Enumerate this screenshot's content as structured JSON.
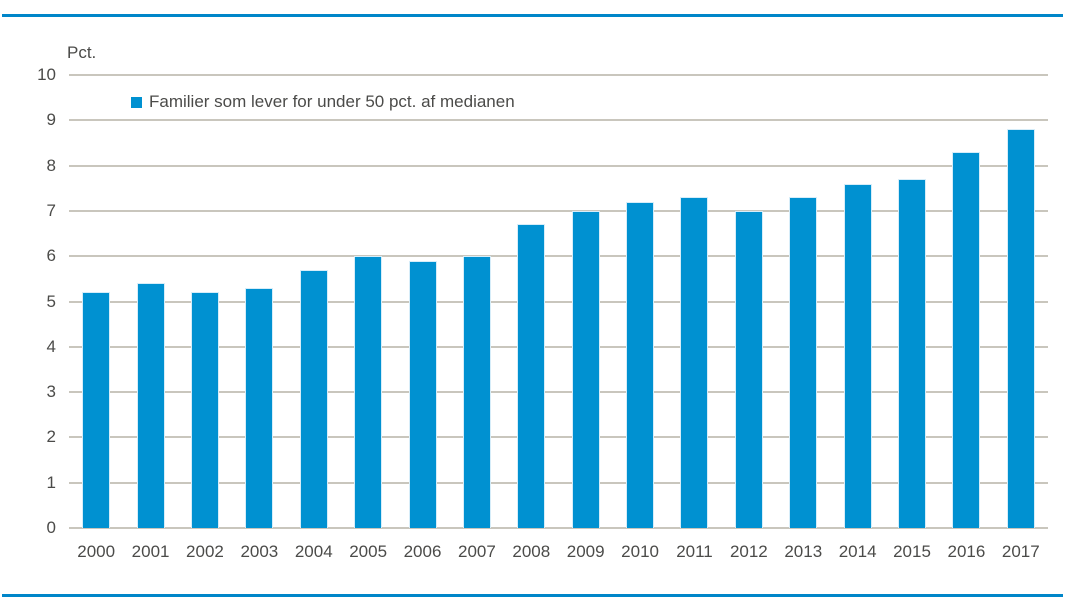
{
  "frame": {
    "top_rule_color": "#0086c9",
    "bottom_rule_color": "#0086c9"
  },
  "chart_data": {
    "type": "bar",
    "title": "",
    "unit_label": "Pct.",
    "xlabel": "",
    "ylabel": "Pct.",
    "categories": [
      "2000",
      "2001",
      "2002",
      "2003",
      "2004",
      "2005",
      "2006",
      "2007",
      "2008",
      "2009",
      "2010",
      "2011",
      "2012",
      "2013",
      "2014",
      "2015",
      "2016",
      "2017"
    ],
    "series": [
      {
        "name": "Familier som lever for under 50 pct. af medianen",
        "values": [
          5.2,
          5.4,
          5.2,
          5.3,
          5.7,
          6.0,
          5.9,
          6.0,
          6.7,
          7.0,
          7.2,
          7.3,
          7.0,
          7.3,
          7.6,
          7.7,
          8.3,
          8.8
        ]
      }
    ],
    "ylim": [
      0,
      10
    ],
    "y_ticks": [
      0,
      1,
      2,
      3,
      4,
      5,
      6,
      7,
      8,
      9,
      10
    ],
    "grid": true,
    "legend_position": "top-left-inside",
    "bar_color": "#0091d1",
    "gridline_color": "#c9c6bd",
    "text_color": "#4b4b49"
  }
}
